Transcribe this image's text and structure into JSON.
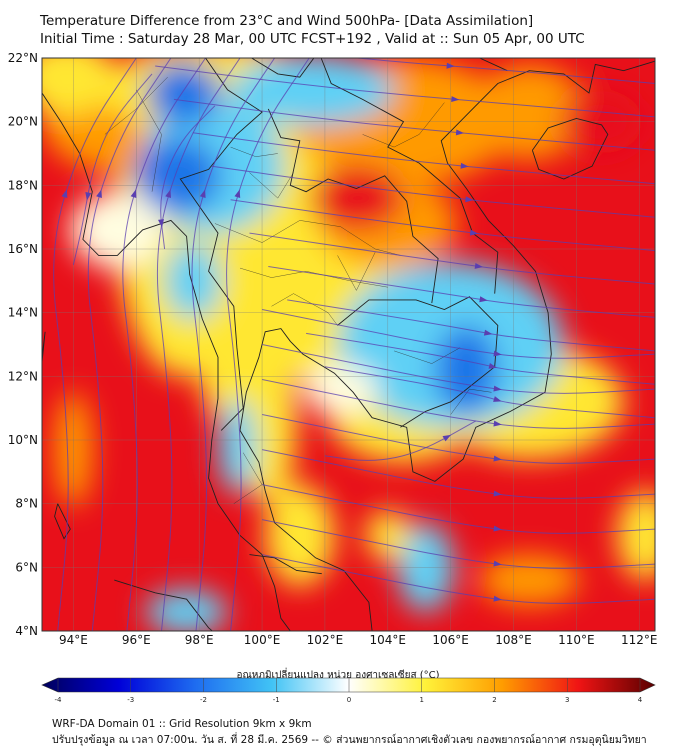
{
  "title": {
    "line1": "Temperature Difference from 23°C and Wind 500hPa- [Data Assimilation]",
    "line2": "Initial Time : Saturday 28 Mar, 00 UTC FCST+192 , Valid at ::  Sun 05 Apr, 00 UTC"
  },
  "map": {
    "lon_range": [
      93,
      112.5
    ],
    "lat_range": [
      4,
      22
    ],
    "lon_ticks": [
      {
        "value": 94,
        "label": "94°E"
      },
      {
        "value": 96,
        "label": "96°E"
      },
      {
        "value": 98,
        "label": "98°E"
      },
      {
        "value": 100,
        "label": "100°E"
      },
      {
        "value": 102,
        "label": "102°E"
      },
      {
        "value": 104,
        "label": "104°E"
      },
      {
        "value": 106,
        "label": "106°E"
      },
      {
        "value": 108,
        "label": "108°E"
      },
      {
        "value": 110,
        "label": "110°E"
      },
      {
        "value": 112,
        "label": "112°E"
      }
    ],
    "lat_ticks": [
      {
        "value": 4,
        "label": "4°N"
      },
      {
        "value": 6,
        "label": "6°N"
      },
      {
        "value": 8,
        "label": "8°N"
      },
      {
        "value": 10,
        "label": "10°N"
      },
      {
        "value": 12,
        "label": "12°N"
      },
      {
        "value": 14,
        "label": "14°N"
      },
      {
        "value": 16,
        "label": "16°N"
      },
      {
        "value": 18,
        "label": "18°N"
      },
      {
        "value": 20,
        "label": "20°N"
      },
      {
        "value": 22,
        "label": "22°N"
      }
    ],
    "grid": true,
    "colors": {
      "hot": "#e8101a",
      "warm": "#ff9a00",
      "mild": "#ffe733",
      "pale": "#fffde0",
      "cool": "#5fd0f5",
      "cold": "#1a74e8",
      "streamline": "#5a3fb0",
      "coast": "#222222"
    }
  },
  "colorbar": {
    "label": "อุณหภูมิเปลี่ยนแปลง หน่วย องศาเซลเซียส (°C)",
    "min": -4,
    "max": 4,
    "ticks": [
      {
        "value": -4,
        "label": "-4"
      },
      {
        "value": -3,
        "label": "-3"
      },
      {
        "value": -2,
        "label": "-2"
      },
      {
        "value": -1,
        "label": "-1"
      },
      {
        "value": 0,
        "label": "0"
      },
      {
        "value": 1,
        "label": "1"
      },
      {
        "value": 2,
        "label": "2"
      },
      {
        "value": 3,
        "label": "3"
      },
      {
        "value": 4,
        "label": "4"
      }
    ],
    "stops": [
      "#00005a",
      "#0000d8",
      "#1e6cf0",
      "#41c3f5",
      "#ffffff",
      "#fff23a",
      "#ff9d00",
      "#f01414",
      "#5a0000"
    ]
  },
  "footer": {
    "line1": "WRF-DA Domain 01 :: Grid Resolution 9km x 9km",
    "line2": "ปรับปรุงข้อมูล ณ เวลา 07:00น. วัน ส. ที่ 28 มี.ค. 2569 -- © ส่วนพยากรณ์อากาศเชิงตัวเลข กองพยากรณ์อากาศ กรมอุตุนิยมวิทยา"
  }
}
